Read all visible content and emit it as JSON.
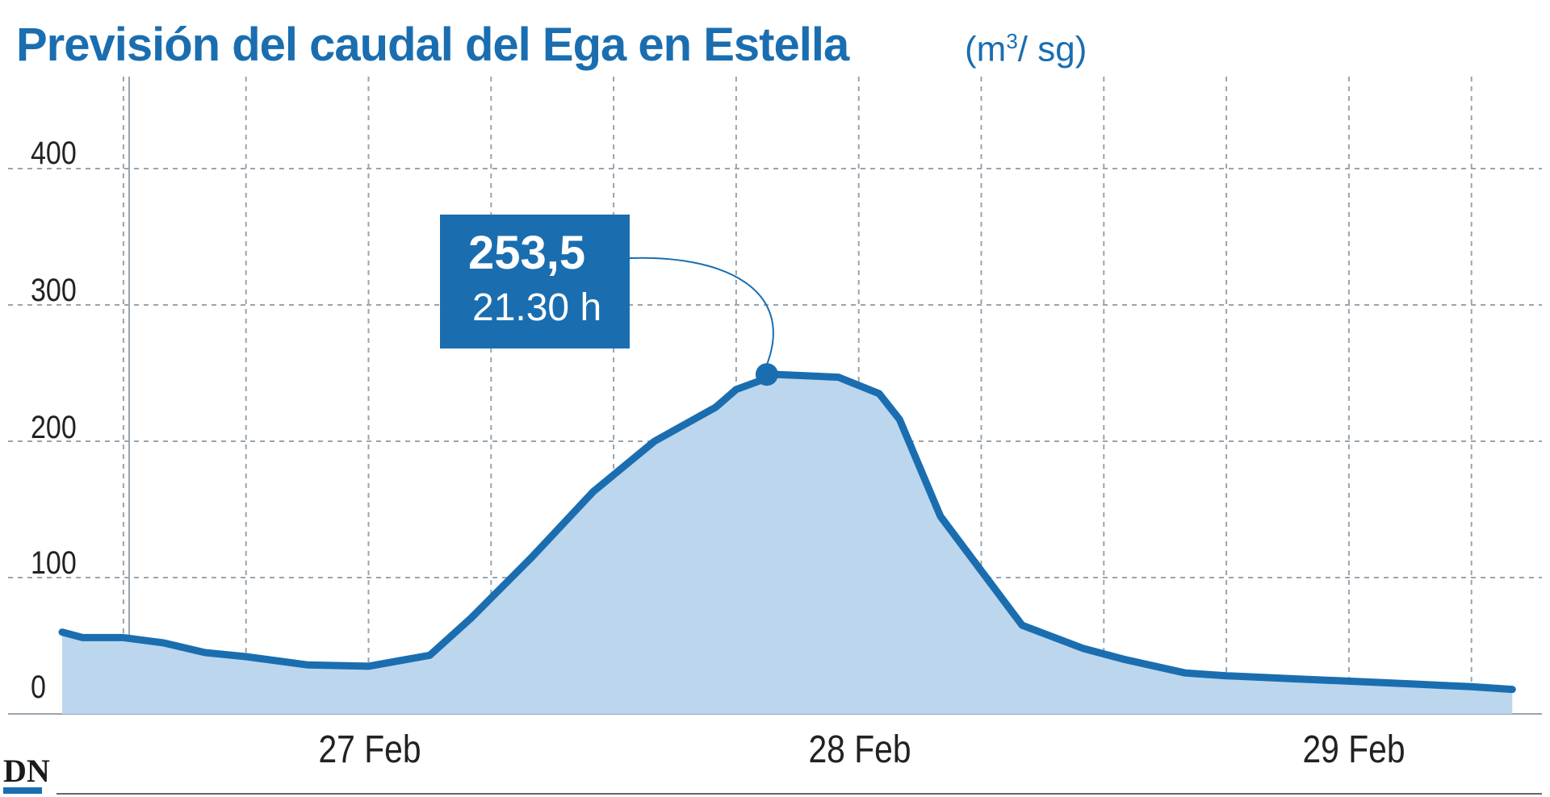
{
  "title": "Previsión del caudal del Ega en Estella",
  "unit_open": "(m",
  "unit_sup": "3",
  "unit_close": "/ sg)",
  "callout": {
    "value": "253,5",
    "time": "21.30 h"
  },
  "logo": "DN",
  "colors": {
    "line": "#1a6eb0",
    "fill": "#bcd6ee",
    "callout": "#1a6eb0",
    "grid": "#9aa4ae"
  },
  "chart_data": {
    "type": "area",
    "title": "Previsión del caudal del Ega en Estella",
    "ylabel": "(m3/ sg)",
    "xlabel": "",
    "ylim": [
      0,
      400
    ],
    "yticks": [
      "0",
      "100",
      "200",
      "300",
      "400"
    ],
    "xticks": [
      "27 Feb",
      "28 Feb",
      "29 Feb"
    ],
    "x_unit": "hours since 26 Feb 00:00",
    "xlim": [
      15,
      86
    ],
    "grid": true,
    "legend": "none",
    "series": [
      {
        "x": [
          15,
          16,
          18,
          20,
          22,
          24,
          27,
          30,
          33,
          35,
          38,
          41,
          44,
          47,
          48,
          50,
          53,
          55,
          56,
          58,
          62,
          65,
          67,
          70,
          72,
          75,
          78,
          81,
          84,
          86
        ],
        "values": [
          60,
          56,
          56,
          52,
          45,
          42,
          36,
          35,
          43,
          70,
          115,
          163,
          200,
          225,
          238,
          249,
          247,
          235,
          216,
          145,
          65,
          48,
          40,
          30,
          28,
          26,
          24,
          22,
          20,
          18
        ]
      }
    ],
    "annotations": [
      {
        "x": 49.5,
        "y": 253.5,
        "label": "253,5",
        "sublabel": "21.30 h"
      }
    ]
  }
}
